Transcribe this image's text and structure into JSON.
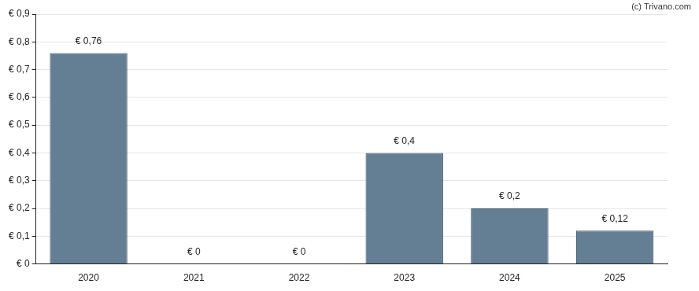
{
  "chart_data": {
    "type": "bar",
    "annotation": "(c) Trivano.com",
    "categories": [
      "2020",
      "2021",
      "2022",
      "2023",
      "2024",
      "2025"
    ],
    "values": [
      0.76,
      0,
      0,
      0.4,
      0.2,
      0.12
    ],
    "value_labels": [
      "€ 0,76",
      "€ 0",
      "€ 0",
      "€ 0,4",
      "€ 0,2",
      "€ 0,12"
    ],
    "color": "#647f94",
    "ylim": [
      0,
      0.9
    ],
    "yticks": [
      {
        "value": 0,
        "label": "€ 0"
      },
      {
        "value": 0.1,
        "label": "€ 0,1"
      },
      {
        "value": 0.2,
        "label": "€ 0,2"
      },
      {
        "value": 0.3,
        "label": "€ 0,3"
      },
      {
        "value": 0.4,
        "label": "€ 0,4"
      },
      {
        "value": 0.5,
        "label": "€ 0,5"
      },
      {
        "value": 0.6,
        "label": "€ 0,6"
      },
      {
        "value": 0.7,
        "label": "€ 0,7"
      },
      {
        "value": 0.8,
        "label": "€ 0,8"
      },
      {
        "value": 0.9,
        "label": "€ 0,9"
      }
    ],
    "grid": true,
    "data_labels": true
  }
}
